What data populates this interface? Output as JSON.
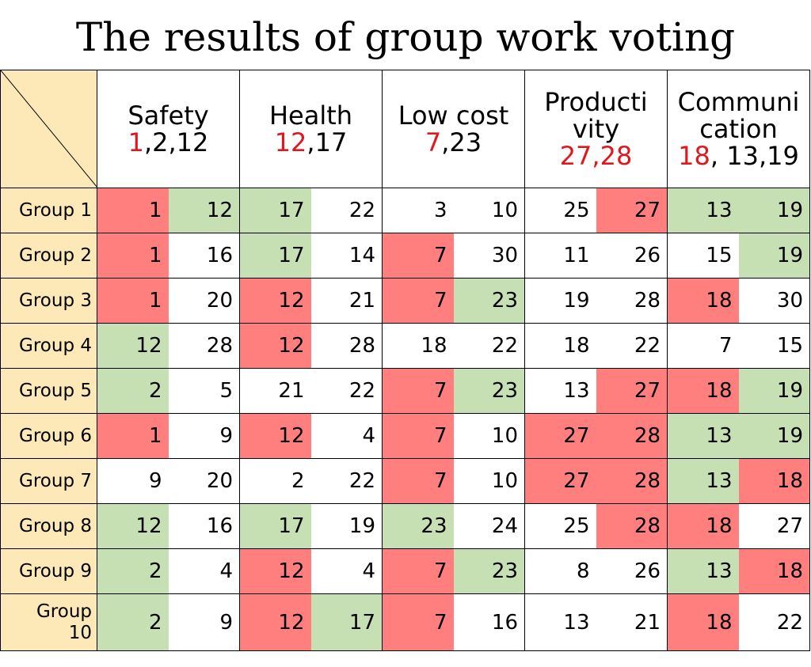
{
  "title": "The results of group work voting",
  "categories": [
    {
      "lines": [
        "Safety"
      ],
      "highlight": "1",
      "rest": ",2,12"
    },
    {
      "lines": [
        "Health"
      ],
      "highlight": "12",
      "rest": ",17"
    },
    {
      "lines": [
        "Low cost"
      ],
      "highlight": "7",
      "rest": ",23"
    },
    {
      "lines": [
        "Producti",
        "vity"
      ],
      "highlight": "27,28",
      "rest": ""
    },
    {
      "lines": [
        "Communi",
        "cation"
      ],
      "highlight": "18",
      "rest": ", 13,19"
    }
  ],
  "colors": {
    "red": "#ff7f7f",
    "green": "#c6e0b4",
    "header": "#fde9b8",
    "highlight_text": "#e0181e"
  },
  "rows": [
    {
      "label": "Group 1",
      "cells": [
        {
          "v": "1",
          "c": "red"
        },
        {
          "v": "12",
          "c": "green"
        },
        {
          "v": "17",
          "c": "green"
        },
        {
          "v": "22",
          "c": "none"
        },
        {
          "v": "3",
          "c": "none"
        },
        {
          "v": "10",
          "c": "none"
        },
        {
          "v": "25",
          "c": "none"
        },
        {
          "v": "27",
          "c": "red"
        },
        {
          "v": "13",
          "c": "green"
        },
        {
          "v": "19",
          "c": "green"
        }
      ]
    },
    {
      "label": "Group 2",
      "cells": [
        {
          "v": "1",
          "c": "red"
        },
        {
          "v": "16",
          "c": "none"
        },
        {
          "v": "17",
          "c": "green"
        },
        {
          "v": "14",
          "c": "none"
        },
        {
          "v": "7",
          "c": "red"
        },
        {
          "v": "30",
          "c": "none"
        },
        {
          "v": "11",
          "c": "none"
        },
        {
          "v": "26",
          "c": "none"
        },
        {
          "v": "15",
          "c": "none"
        },
        {
          "v": "19",
          "c": "green"
        }
      ]
    },
    {
      "label": "Group 3",
      "cells": [
        {
          "v": "1",
          "c": "red"
        },
        {
          "v": "20",
          "c": "none"
        },
        {
          "v": "12",
          "c": "red"
        },
        {
          "v": "21",
          "c": "none"
        },
        {
          "v": "7",
          "c": "red"
        },
        {
          "v": "23",
          "c": "green"
        },
        {
          "v": "19",
          "c": "none"
        },
        {
          "v": "28",
          "c": "none"
        },
        {
          "v": "18",
          "c": "red"
        },
        {
          "v": "30",
          "c": "none"
        }
      ]
    },
    {
      "label": "Group 4",
      "cells": [
        {
          "v": "12",
          "c": "green"
        },
        {
          "v": "28",
          "c": "none"
        },
        {
          "v": "12",
          "c": "red"
        },
        {
          "v": "28",
          "c": "none"
        },
        {
          "v": "18",
          "c": "none"
        },
        {
          "v": "22",
          "c": "none"
        },
        {
          "v": "18",
          "c": "none"
        },
        {
          "v": "22",
          "c": "none"
        },
        {
          "v": "7",
          "c": "none"
        },
        {
          "v": "15",
          "c": "none"
        }
      ]
    },
    {
      "label": "Group 5",
      "cells": [
        {
          "v": "2",
          "c": "green"
        },
        {
          "v": "5",
          "c": "none"
        },
        {
          "v": "21",
          "c": "none"
        },
        {
          "v": "22",
          "c": "none"
        },
        {
          "v": "7",
          "c": "red"
        },
        {
          "v": "23",
          "c": "green"
        },
        {
          "v": "13",
          "c": "none"
        },
        {
          "v": "27",
          "c": "red"
        },
        {
          "v": "18",
          "c": "red"
        },
        {
          "v": "19",
          "c": "green"
        }
      ]
    },
    {
      "label": "Group 6",
      "cells": [
        {
          "v": "1",
          "c": "red"
        },
        {
          "v": "9",
          "c": "none"
        },
        {
          "v": "12",
          "c": "red"
        },
        {
          "v": "4",
          "c": "none"
        },
        {
          "v": "7",
          "c": "red"
        },
        {
          "v": "10",
          "c": "none"
        },
        {
          "v": "27",
          "c": "red"
        },
        {
          "v": "28",
          "c": "red"
        },
        {
          "v": "13",
          "c": "green"
        },
        {
          "v": "19",
          "c": "green"
        }
      ]
    },
    {
      "label": "Group 7",
      "cells": [
        {
          "v": "9",
          "c": "none"
        },
        {
          "v": "20",
          "c": "none"
        },
        {
          "v": "2",
          "c": "none"
        },
        {
          "v": "22",
          "c": "none"
        },
        {
          "v": "7",
          "c": "red"
        },
        {
          "v": "10",
          "c": "none"
        },
        {
          "v": "27",
          "c": "red"
        },
        {
          "v": "28",
          "c": "red"
        },
        {
          "v": "13",
          "c": "green"
        },
        {
          "v": "18",
          "c": "red"
        }
      ]
    },
    {
      "label": "Group 8",
      "cells": [
        {
          "v": "12",
          "c": "green"
        },
        {
          "v": "16",
          "c": "none"
        },
        {
          "v": "17",
          "c": "green"
        },
        {
          "v": "19",
          "c": "none"
        },
        {
          "v": "23",
          "c": "green"
        },
        {
          "v": "24",
          "c": "none"
        },
        {
          "v": "25",
          "c": "none"
        },
        {
          "v": "28",
          "c": "red"
        },
        {
          "v": "18",
          "c": "red"
        },
        {
          "v": "27",
          "c": "none"
        }
      ]
    },
    {
      "label": "Group 9",
      "cells": [
        {
          "v": "2",
          "c": "green"
        },
        {
          "v": "4",
          "c": "none"
        },
        {
          "v": "12",
          "c": "red"
        },
        {
          "v": "4",
          "c": "none"
        },
        {
          "v": "7",
          "c": "red"
        },
        {
          "v": "23",
          "c": "green"
        },
        {
          "v": "8",
          "c": "none"
        },
        {
          "v": "26",
          "c": "none"
        },
        {
          "v": "13",
          "c": "green"
        },
        {
          "v": "18",
          "c": "red"
        }
      ]
    },
    {
      "label": "Group 10",
      "cells": [
        {
          "v": "2",
          "c": "green"
        },
        {
          "v": "9",
          "c": "none"
        },
        {
          "v": "12",
          "c": "red"
        },
        {
          "v": "17",
          "c": "green"
        },
        {
          "v": "7",
          "c": "red"
        },
        {
          "v": "16",
          "c": "none"
        },
        {
          "v": "13",
          "c": "none"
        },
        {
          "v": "21",
          "c": "none"
        },
        {
          "v": "18",
          "c": "red"
        },
        {
          "v": "22",
          "c": "none"
        }
      ]
    }
  ]
}
